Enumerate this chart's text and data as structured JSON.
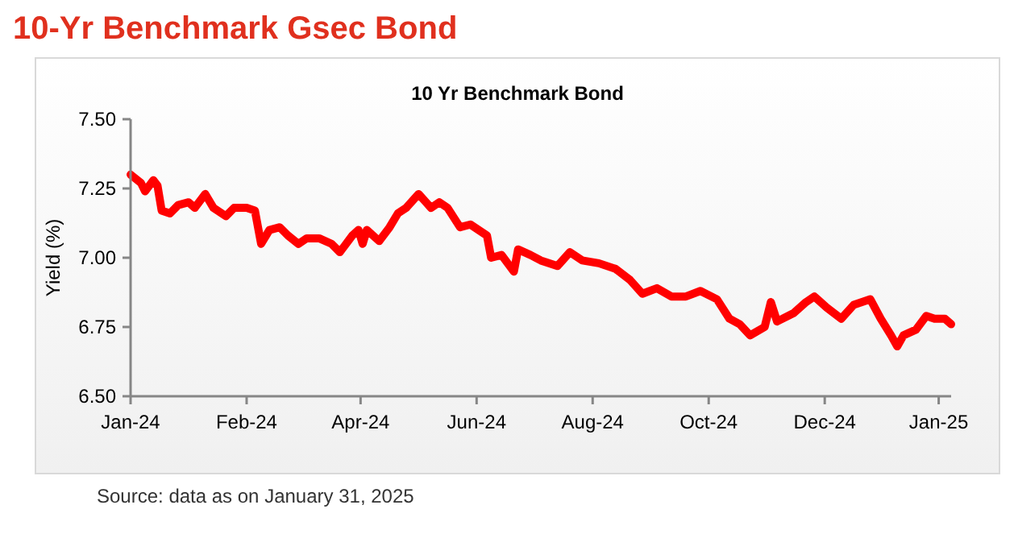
{
  "chart_data": {
    "type": "line",
    "title": "10-Yr Benchmark Gsec Bond",
    "subtitle": "10 Yr Benchmark Bond",
    "ylabel": "Yield (%)",
    "annotations": [
      "Source: data as on January 31, 2025"
    ],
    "x": [
      "2024-01-01",
      "2024-01-06",
      "2024-01-08",
      "2024-01-12",
      "2024-01-14",
      "2024-01-16",
      "2024-01-20",
      "2024-01-24",
      "2024-01-29",
      "2024-02-01",
      "2024-02-06",
      "2024-02-10",
      "2024-02-16",
      "2024-02-20",
      "2024-02-26",
      "2024-03-01",
      "2024-03-04",
      "2024-03-08",
      "2024-03-13",
      "2024-03-17",
      "2024-03-22",
      "2024-03-26",
      "2024-04-01",
      "2024-04-07",
      "2024-04-11",
      "2024-04-17",
      "2024-04-20",
      "2024-04-22",
      "2024-04-24",
      "2024-04-30",
      "2024-05-05",
      "2024-05-09",
      "2024-05-13",
      "2024-05-19",
      "2024-05-25",
      "2024-05-29",
      "2024-06-02",
      "2024-06-08",
      "2024-06-13",
      "2024-06-21",
      "2024-06-23",
      "2024-06-28",
      "2024-07-04",
      "2024-07-06",
      "2024-07-12",
      "2024-07-17",
      "2024-07-25",
      "2024-07-31",
      "2024-08-06",
      "2024-08-14",
      "2024-08-22",
      "2024-08-29",
      "2024-09-04",
      "2024-09-11",
      "2024-09-18",
      "2024-09-25",
      "2024-10-02",
      "2024-10-10",
      "2024-10-16",
      "2024-10-21",
      "2024-10-26",
      "2024-11-02",
      "2024-11-05",
      "2024-11-08",
      "2024-11-16",
      "2024-11-22",
      "2024-11-26",
      "2024-12-02",
      "2024-12-09",
      "2024-12-15",
      "2024-12-23",
      "2024-12-28",
      "2025-01-02",
      "2025-01-05",
      "2025-01-08",
      "2025-01-14",
      "2025-01-19",
      "2025-01-23",
      "2025-01-28",
      "2025-01-31"
    ],
    "series": [
      {
        "color": "#ff0000",
        "values": [
          7.3,
          7.27,
          7.24,
          7.28,
          7.26,
          7.17,
          7.16,
          7.19,
          7.2,
          7.18,
          7.23,
          7.18,
          7.15,
          7.18,
          7.18,
          7.17,
          7.05,
          7.1,
          7.11,
          7.08,
          7.05,
          7.07,
          7.07,
          7.05,
          7.02,
          7.08,
          7.1,
          7.05,
          7.1,
          7.06,
          7.11,
          7.16,
          7.18,
          7.23,
          7.18,
          7.2,
          7.18,
          7.11,
          7.12,
          7.08,
          7.0,
          7.01,
          6.95,
          7.03,
          7.01,
          6.99,
          6.97,
          7.02,
          6.99,
          6.98,
          6.96,
          6.92,
          6.87,
          6.89,
          6.86,
          6.86,
          6.88,
          6.85,
          6.78,
          6.76,
          6.72,
          6.75,
          6.84,
          6.77,
          6.8,
          6.84,
          6.86,
          6.82,
          6.78,
          6.83,
          6.85,
          6.78,
          6.72,
          6.68,
          6.72,
          6.74,
          6.79,
          6.78,
          6.78,
          6.76
        ]
      }
    ],
    "xlim": [
      "2024-01-01",
      "2025-01-31"
    ],
    "xticks": [
      {
        "value": "2024-01-01",
        "label": "Jan-24"
      },
      {
        "value": "2024-02-26",
        "label": "Feb-24"
      },
      {
        "value": "2024-04-21",
        "label": "Apr-24"
      },
      {
        "value": "2024-06-16",
        "label": "Jun-24"
      },
      {
        "value": "2024-08-11",
        "label": "Aug-24"
      },
      {
        "value": "2024-10-06",
        "label": "Oct-24"
      },
      {
        "value": "2024-12-01",
        "label": "Dec-24"
      },
      {
        "value": "2025-01-25",
        "label": "Jan-25"
      }
    ],
    "ylim": [
      6.5,
      7.5
    ],
    "yticks": [
      {
        "value": 6.5,
        "label": "6.50"
      },
      {
        "value": 6.75,
        "label": "6.75"
      },
      {
        "value": 7,
        "label": "7.00"
      },
      {
        "value": 7.25,
        "label": "7.25"
      },
      {
        "value": 7.5,
        "label": "7.50"
      }
    ],
    "marker": "none",
    "line_style": "solid"
  }
}
